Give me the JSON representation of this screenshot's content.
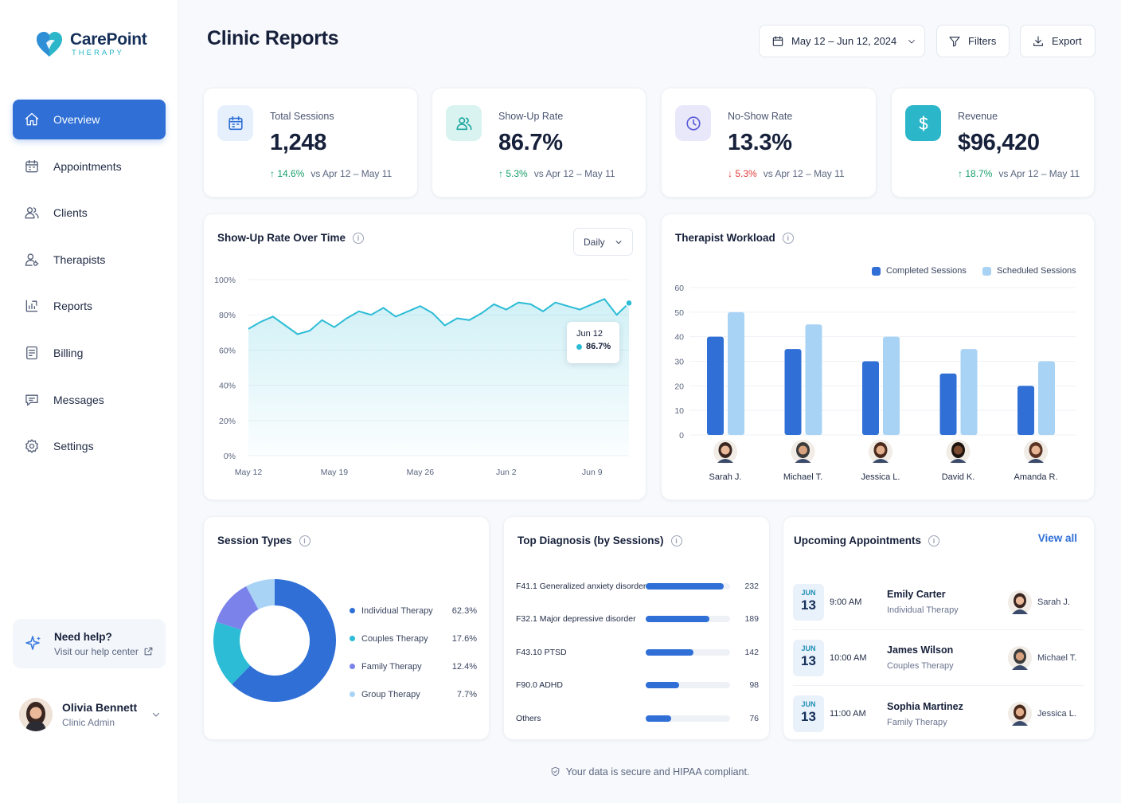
{
  "brand": {
    "name": "CarePoint",
    "sub": "THERAPY"
  },
  "nav": [
    {
      "label": "Overview",
      "icon": "home-icon",
      "active": true
    },
    {
      "label": "Appointments",
      "icon": "calendar-icon"
    },
    {
      "label": "Clients",
      "icon": "users-icon"
    },
    {
      "label": "Therapists",
      "icon": "therapist-icon"
    },
    {
      "label": "Reports",
      "icon": "reports-icon"
    },
    {
      "label": "Billing",
      "icon": "billing-icon"
    },
    {
      "label": "Messages",
      "icon": "messages-icon"
    },
    {
      "label": "Settings",
      "icon": "settings-icon"
    }
  ],
  "help": {
    "title": "Need help?",
    "link": "Visit our help center"
  },
  "user": {
    "name": "Olivia Bennett",
    "role": "Clinic Admin"
  },
  "header": {
    "title": "Clinic Reports",
    "date_range": "May 12 – Jun 12, 2024",
    "filters": "Filters",
    "export": "Export"
  },
  "kpis": [
    {
      "label": "Total Sessions",
      "value": "1,248",
      "delta": "14.6%",
      "direction": "up",
      "compare": "vs Apr 12 – May 11",
      "icon": "calendar-icon",
      "icon_bg": "#e6f0fc",
      "icon_color": "#2f6fd6"
    },
    {
      "label": "Show-Up Rate",
      "value": "86.7%",
      "delta": "5.3%",
      "direction": "up",
      "compare": "vs Apr 12 – May 11",
      "icon": "users-icon",
      "icon_bg": "#d9f3f1",
      "icon_color": "#1fa8a0"
    },
    {
      "label": "No-Show Rate",
      "value": "13.3%",
      "delta": "5.3%",
      "direction": "down",
      "compare": "vs Apr 12 – May 11",
      "icon": "clock-icon",
      "icon_bg": "#e9e8fb",
      "icon_color": "#5b5bd6"
    },
    {
      "label": "Revenue",
      "value": "$96,420",
      "delta": "18.7%",
      "direction": "up",
      "compare": "vs Apr 12 – May 11",
      "icon": "dollar-icon",
      "icon_bg": "#2cb6c9",
      "icon_color": "#ffffff"
    }
  ],
  "showup_chart": {
    "title": "Show-Up Rate Over Time",
    "granularity": "Daily",
    "tooltip_date": "Jun 12",
    "tooltip_value": "86.7%",
    "y_ticks": [
      "100%",
      "80%",
      "60%",
      "40%",
      "20%",
      "0%"
    ],
    "x_ticks": [
      "May 12",
      "May 19",
      "May 26",
      "Jun 2",
      "Jun 9"
    ]
  },
  "workload": {
    "title": "Therapist Workload",
    "legend_completed": "Completed Sessions",
    "legend_scheduled": "Scheduled Sessions",
    "y_ticks": [
      "60",
      "50",
      "40",
      "30",
      "20",
      "10",
      "0"
    ],
    "therapists": [
      "Sarah J.",
      "Michael T.",
      "Jessica L.",
      "David K.",
      "Amanda R."
    ]
  },
  "session_types": {
    "title": "Session Types",
    "items": [
      {
        "label": "Individual Therapy",
        "pct": "62.3%",
        "value": 62.3,
        "color": "#2f6fd6"
      },
      {
        "label": "Couples Therapy",
        "pct": "17.6%",
        "value": 17.6,
        "color": "#2cbcd6"
      },
      {
        "label": "Family Therapy",
        "pct": "12.4%",
        "value": 12.4,
        "color": "#7b83eb"
      },
      {
        "label": "Group Therapy",
        "pct": "7.7%",
        "value": 7.7,
        "color": "#a9d3f5"
      }
    ]
  },
  "diagnosis": {
    "title": "Top Diagnosis (by Sessions)",
    "items": [
      {
        "label": "F41.1 Generalized anxiety disorder",
        "value": 232
      },
      {
        "label": "F32.1 Major depressive disorder",
        "value": 189
      },
      {
        "label": "F43.10 PTSD",
        "value": 142
      },
      {
        "label": "F90.0 ADHD",
        "value": 98
      },
      {
        "label": "Others",
        "value": 76
      }
    ]
  },
  "upcoming": {
    "title": "Upcoming Appointments",
    "view_all": "View all",
    "items": [
      {
        "month": "JUN",
        "day": "13",
        "time": "9:00 AM",
        "client": "Emily Carter",
        "type": "Individual Therapy",
        "therapist": "Sarah J."
      },
      {
        "month": "JUN",
        "day": "13",
        "time": "10:00 AM",
        "client": "James Wilson",
        "type": "Couples Therapy",
        "therapist": "Michael T."
      },
      {
        "month": "JUN",
        "day": "13",
        "time": "11:00 AM",
        "client": "Sophia Martinez",
        "type": "Family Therapy",
        "therapist": "Jessica L."
      }
    ]
  },
  "footer": "Your data is secure and HIPAA compliant.",
  "chart_data": [
    {
      "type": "area",
      "title": "Show-Up Rate Over Time",
      "xlabel": "",
      "ylabel": "",
      "ylim": [
        0,
        100
      ],
      "x": [
        "May 12",
        "May 13",
        "May 14",
        "May 15",
        "May 16",
        "May 17",
        "May 18",
        "May 19",
        "May 20",
        "May 21",
        "May 22",
        "May 23",
        "May 24",
        "May 25",
        "May 26",
        "May 27",
        "May 28",
        "May 29",
        "May 30",
        "May 31",
        "Jun 1",
        "Jun 2",
        "Jun 3",
        "Jun 4",
        "Jun 5",
        "Jun 6",
        "Jun 7",
        "Jun 8",
        "Jun 9",
        "Jun 10",
        "Jun 11",
        "Jun 12"
      ],
      "values": [
        72,
        76,
        79,
        74,
        69,
        71,
        77,
        73,
        78,
        82,
        80,
        84,
        79,
        82,
        85,
        81,
        74,
        78,
        77,
        81,
        86,
        83,
        87,
        86,
        82,
        87,
        85,
        83,
        86,
        89,
        80,
        86.7
      ],
      "grid": true
    },
    {
      "type": "bar",
      "title": "Therapist Workload",
      "categories": [
        "Sarah J.",
        "Michael T.",
        "Jessica L.",
        "David K.",
        "Amanda R."
      ],
      "series": [
        {
          "name": "Completed Sessions",
          "values": [
            40,
            35,
            30,
            25,
            20
          ]
        },
        {
          "name": "Scheduled Sessions",
          "values": [
            50,
            45,
            40,
            35,
            30
          ]
        }
      ],
      "ylim": [
        0,
        60
      ],
      "legend": "top-right"
    },
    {
      "type": "pie",
      "title": "Session Types",
      "categories": [
        "Individual Therapy",
        "Couples Therapy",
        "Family Therapy",
        "Group Therapy"
      ],
      "values": [
        62.3,
        17.6,
        12.4,
        7.7
      ]
    },
    {
      "type": "bar",
      "title": "Top Diagnosis (by Sessions)",
      "categories": [
        "F41.1 Generalized anxiety disorder",
        "F32.1 Major depressive disorder",
        "F43.10 PTSD",
        "F90.0 ADHD",
        "Others"
      ],
      "values": [
        232,
        189,
        142,
        98,
        76
      ]
    }
  ]
}
